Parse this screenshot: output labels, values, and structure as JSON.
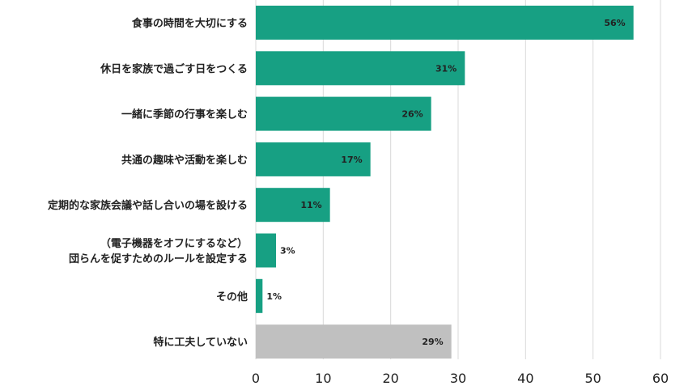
{
  "chart_data": {
    "type": "bar",
    "orientation": "horizontal",
    "categories": [
      [
        "食事の時間を大切にする"
      ],
      [
        "休日を家族で過ごす日をつくる"
      ],
      [
        "一緒に季節の行事を楽しむ"
      ],
      [
        "共通の趣味や活動を楽しむ"
      ],
      [
        "定期的な家族会議や話し合いの場を設ける"
      ],
      [
        "（電子機器をオフにするなど）",
        "団らんを促すためのルールを設定する"
      ],
      [
        "その他"
      ],
      [
        "特に工夫していない"
      ]
    ],
    "values": [
      56,
      31,
      26,
      17,
      11,
      3,
      1,
      29
    ],
    "value_labels": [
      "56%",
      "31%",
      "26%",
      "17%",
      "11%",
      "3%",
      "1%",
      "29%"
    ],
    "colors": [
      "#17a083",
      "#17a083",
      "#17a083",
      "#17a083",
      "#17a083",
      "#17a083",
      "#17a083",
      "#c0c0c0"
    ],
    "xlim": [
      0,
      60
    ],
    "xticks": [
      0,
      10,
      20,
      30,
      40,
      50,
      60
    ],
    "grid": "vertical",
    "title": "",
    "xlabel": "",
    "ylabel": ""
  }
}
